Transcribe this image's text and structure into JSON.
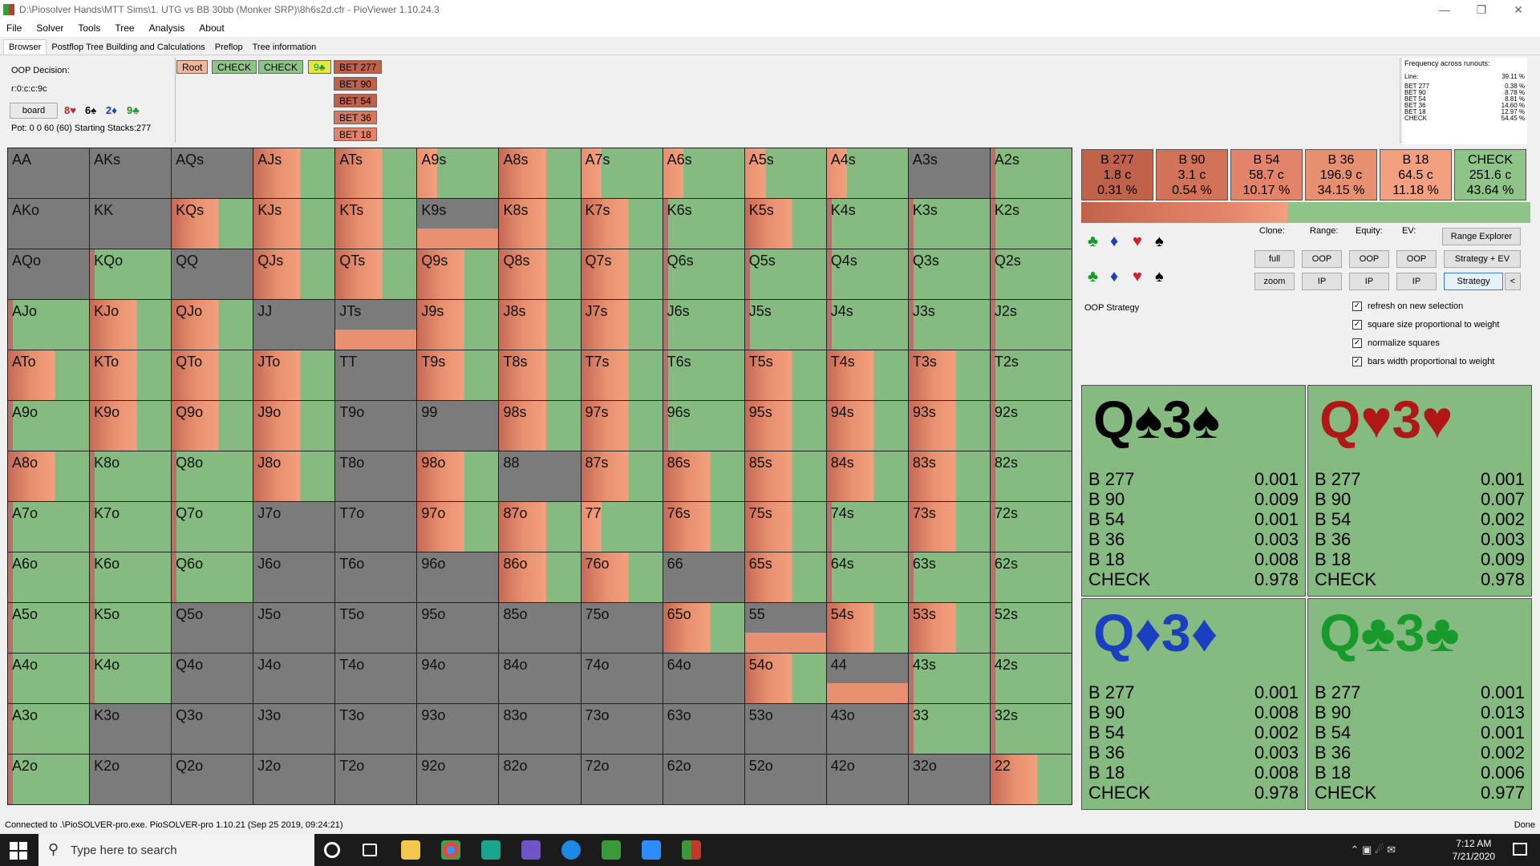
{
  "window": {
    "title": "D:\\Piosolver Hands\\MTT Sims\\1. UTG vs BB 30bb (Monker SRP)\\8h6s2d.cfr - PioViewer 1.10.24.3"
  },
  "menu": [
    "File",
    "Solver",
    "Tools",
    "Tree",
    "Analysis",
    "About"
  ],
  "tabs": [
    "Browser",
    "Postflop Tree Building and Calculations",
    "Preflop",
    "Tree information"
  ],
  "decision": {
    "label": "OOP Decision:",
    "line": "r:0:c:c:9c",
    "board_btn": "board",
    "board_cards": [
      "8♥",
      "6♠",
      "2♦",
      "9♣"
    ],
    "pot": "Pot: 0 0 60 (60) Starting Stacks:277"
  },
  "tree": {
    "root": "Root",
    "check1": "CHECK",
    "check2": "CHECK",
    "card": "9♣",
    "bets": [
      "BET 277",
      "BET 90",
      "BET 54",
      "BET 36",
      "BET 18"
    ]
  },
  "frequency": {
    "title": "Frequency across runouts:",
    "line_label": "Line:",
    "line_val": "39.11 %",
    "rows": [
      [
        "BET 277",
        "0.38 %"
      ],
      [
        "BET 90",
        "8.78 %"
      ],
      [
        "BET 54",
        "8.81 %"
      ],
      [
        "BET 36",
        "14.60 %"
      ],
      [
        "BET 18",
        "12.97 %"
      ],
      [
        "CHECK",
        "54.45 %"
      ]
    ]
  },
  "actions": [
    {
      "name": "B 277",
      "size": "1.8 c",
      "pct": "0.31 %",
      "color": "#c0614a"
    },
    {
      "name": "B 90",
      "size": "3.1 c",
      "pct": "0.54 %",
      "color": "#d27259"
    },
    {
      "name": "B 54",
      "size": "58.7 c",
      "pct": "10.17 %",
      "color": "#e3846a"
    },
    {
      "name": "B 36",
      "size": "196.9 c",
      "pct": "34.15 %",
      "color": "#e7906f"
    },
    {
      "name": "B 18",
      "size": "64.5 c",
      "pct": "11.18 %",
      "color": "#f2a07f"
    },
    {
      "name": "CHECK",
      "size": "251.6 c",
      "pct": "43.64 %",
      "color": "#8fc489"
    }
  ],
  "controls": {
    "clone": "Clone:",
    "range": "Range:",
    "equity": "Equity:",
    "ev": "EV:",
    "range_explorer": "Range Explorer",
    "full": "full",
    "zoom": "zoom",
    "oop": "OOP",
    "ip": "IP",
    "strat_ev": "Strategy + EV",
    "strategy": "Strategy",
    "collapse": "<",
    "oop_strategy": "OOP Strategy"
  },
  "checkboxes": [
    {
      "label": "refresh on new selection",
      "checked": true
    },
    {
      "label": "square size proportional to weight",
      "checked": true
    },
    {
      "label": "normalize squares",
      "checked": true
    },
    {
      "label": "bars width proportional to weight",
      "checked": true
    }
  ],
  "suits": [
    {
      "hand": "Q♠3♠",
      "color": "#000",
      "vals": [
        [
          "B 277",
          "0.001"
        ],
        [
          "B 90",
          "0.009"
        ],
        [
          "B 54",
          "0.001"
        ],
        [
          "B 36",
          "0.003"
        ],
        [
          "B 18",
          "0.008"
        ],
        [
          "CHECK",
          "0.978"
        ]
      ]
    },
    {
      "hand": "Q♥3♥",
      "color": "#b01818",
      "vals": [
        [
          "B 277",
          "0.001"
        ],
        [
          "B 90",
          "0.007"
        ],
        [
          "B 54",
          "0.002"
        ],
        [
          "B 36",
          "0.003"
        ],
        [
          "B 18",
          "0.009"
        ],
        [
          "CHECK",
          "0.978"
        ]
      ]
    },
    {
      "hand": "Q♦3♦",
      "color": "#1a3fc0",
      "vals": [
        [
          "B 277",
          "0.001"
        ],
        [
          "B 90",
          "0.008"
        ],
        [
          "B 54",
          "0.002"
        ],
        [
          "B 36",
          "0.003"
        ],
        [
          "B 18",
          "0.008"
        ],
        [
          "CHECK",
          "0.978"
        ]
      ]
    },
    {
      "hand": "Q♣3♣",
      "color": "#179a2a",
      "vals": [
        [
          "B 277",
          "0.001"
        ],
        [
          "B 90",
          "0.013"
        ],
        [
          "B 54",
          "0.001"
        ],
        [
          "B 36",
          "0.002"
        ],
        [
          "B 18",
          "0.006"
        ],
        [
          "CHECK",
          "0.977"
        ]
      ]
    }
  ],
  "grid": {
    "labels": [
      [
        "AA",
        "AKs",
        "AQs",
        "AJs",
        "ATs",
        "A9s",
        "A8s",
        "A7s",
        "A6s",
        "A5s",
        "A4s",
        "A3s",
        "A2s"
      ],
      [
        "AKo",
        "KK",
        "KQs",
        "KJs",
        "KTs",
        "K9s",
        "K8s",
        "K7s",
        "K6s",
        "K5s",
        "K4s",
        "K3s",
        "K2s"
      ],
      [
        "AQo",
        "KQo",
        "QQ",
        "QJs",
        "QTs",
        "Q9s",
        "Q8s",
        "Q7s",
        "Q6s",
        "Q5s",
        "Q4s",
        "Q3s",
        "Q2s"
      ],
      [
        "AJo",
        "KJo",
        "QJo",
        "JJ",
        "JTs",
        "J9s",
        "J8s",
        "J7s",
        "J6s",
        "J5s",
        "J4s",
        "J3s",
        "J2s"
      ],
      [
        "ATo",
        "KTo",
        "QTo",
        "JTo",
        "TT",
        "T9s",
        "T8s",
        "T7s",
        "T6s",
        "T5s",
        "T4s",
        "T3s",
        "T2s"
      ],
      [
        "A9o",
        "K9o",
        "Q9o",
        "J9o",
        "T9o",
        "99",
        "98s",
        "97s",
        "96s",
        "95s",
        "94s",
        "93s",
        "92s"
      ],
      [
        "A8o",
        "K8o",
        "Q8o",
        "J8o",
        "T8o",
        "98o",
        "88",
        "87s",
        "86s",
        "85s",
        "84s",
        "83s",
        "82s"
      ],
      [
        "A7o",
        "K7o",
        "Q7o",
        "J7o",
        "T7o",
        "97o",
        "87o",
        "77",
        "76s",
        "75s",
        "74s",
        "73s",
        "72s"
      ],
      [
        "A6o",
        "K6o",
        "Q6o",
        "J6o",
        "T6o",
        "96o",
        "86o",
        "76o",
        "66",
        "65s",
        "64s",
        "63s",
        "62s"
      ],
      [
        "A5o",
        "K5o",
        "Q5o",
        "J5o",
        "T5o",
        "95o",
        "85o",
        "75o",
        "65o",
        "55",
        "54s",
        "53s",
        "52s"
      ],
      [
        "A4o",
        "K4o",
        "Q4o",
        "J4o",
        "T4o",
        "94o",
        "84o",
        "74o",
        "64o",
        "54o",
        "44",
        "43s",
        "42s"
      ],
      [
        "A3o",
        "K3o",
        "Q3o",
        "J3o",
        "T3o",
        "93o",
        "83o",
        "73o",
        "63o",
        "53o",
        "43o",
        "33",
        "32s"
      ],
      [
        "A2o",
        "K2o",
        "Q2o",
        "J2o",
        "T2o",
        "92o",
        "82o",
        "72o",
        "62o",
        "52o",
        "42o",
        "32o",
        "22"
      ]
    ],
    "types": [
      "DDDOOMOMMMMDG",
      "DDOOOPOOGOGGG",
      "DGDOOOOOGGGGG",
      "GOODPOOOGGGGG",
      "OOOODOOOGOOOG",
      "GOOODDOOGOOOG",
      "OGGODODOOOOOG",
      "GGGDDOOMOOGOG",
      "GGGDDDOODOGGG",
      "GGDDDDDDOPOOG",
      "GGDDDDDDDOPGG",
      "GDDDDDDDDDDGG",
      "GDDDDDDDDDDDO"
    ]
  },
  "status": {
    "left": "Connected to .\\PioSOLVER-pro.exe. PioSOLVER-pro 1.10.21 (Sep 25 2019, 09:24:21)",
    "right": "Done"
  },
  "taskbar": {
    "search": "Type here to search",
    "time": "7:12 AM",
    "date": "7/21/2020"
  }
}
